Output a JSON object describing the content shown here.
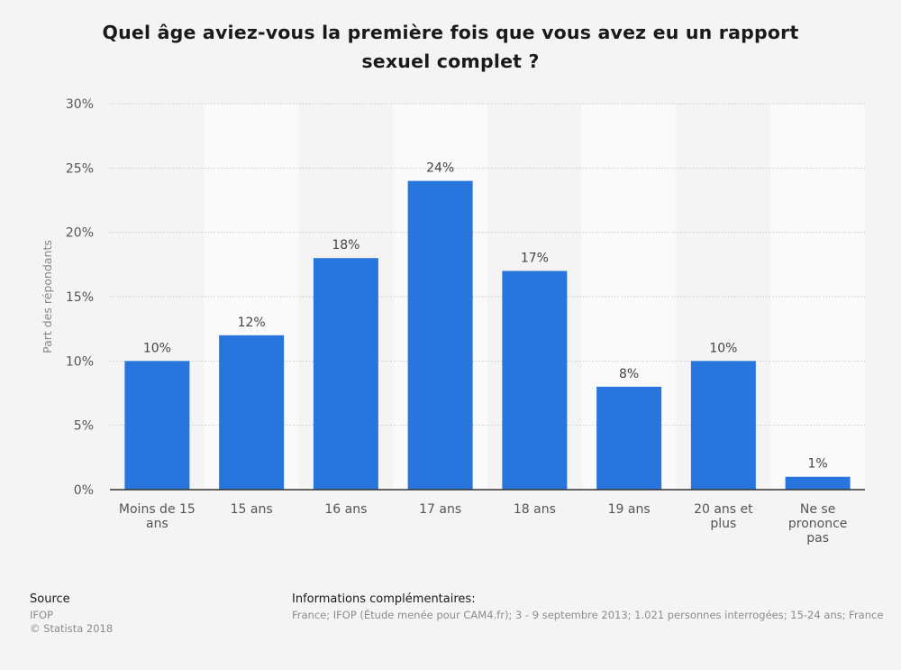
{
  "chart_data": {
    "type": "bar",
    "title": "Quel âge aviez-vous la première fois que vous avez eu un rapport sexuel complet ?",
    "ylabel": "Part des répondants",
    "xlabel": "",
    "categories": [
      [
        "Moins de 15",
        "ans"
      ],
      [
        "15 ans"
      ],
      [
        "16 ans"
      ],
      [
        "17 ans"
      ],
      [
        "18 ans"
      ],
      [
        "19 ans"
      ],
      [
        "20 ans et",
        "plus"
      ],
      [
        "Ne se",
        "prononce",
        "pas"
      ]
    ],
    "values": [
      10,
      12,
      18,
      24,
      17,
      8,
      10,
      1
    ],
    "value_labels": [
      "10%",
      "12%",
      "18%",
      "24%",
      "17%",
      "8%",
      "10%",
      "1%"
    ],
    "yticks": [
      "0%",
      "5%",
      "10%",
      "15%",
      "20%",
      "25%",
      "30%"
    ],
    "ylim": [
      0,
      30
    ],
    "grid": true,
    "colors": {
      "bar": "#2876dd",
      "band": "#fafafa",
      "grid": "#c8c8c8",
      "axis": "#333333",
      "tick_text": "#555555",
      "value_text": "#444444",
      "ylabel_text": "#888888"
    }
  },
  "footer": {
    "source_title": "Source",
    "source_lines": [
      "IFOP",
      "© Statista 2018"
    ],
    "info_title": "Informations complémentaires:",
    "info_text": "France; IFOP (Étude menée pour CAM4.fr); 3 - 9 septembre 2013; 1.021 personnes interrogées; 15-24 ans; France"
  }
}
